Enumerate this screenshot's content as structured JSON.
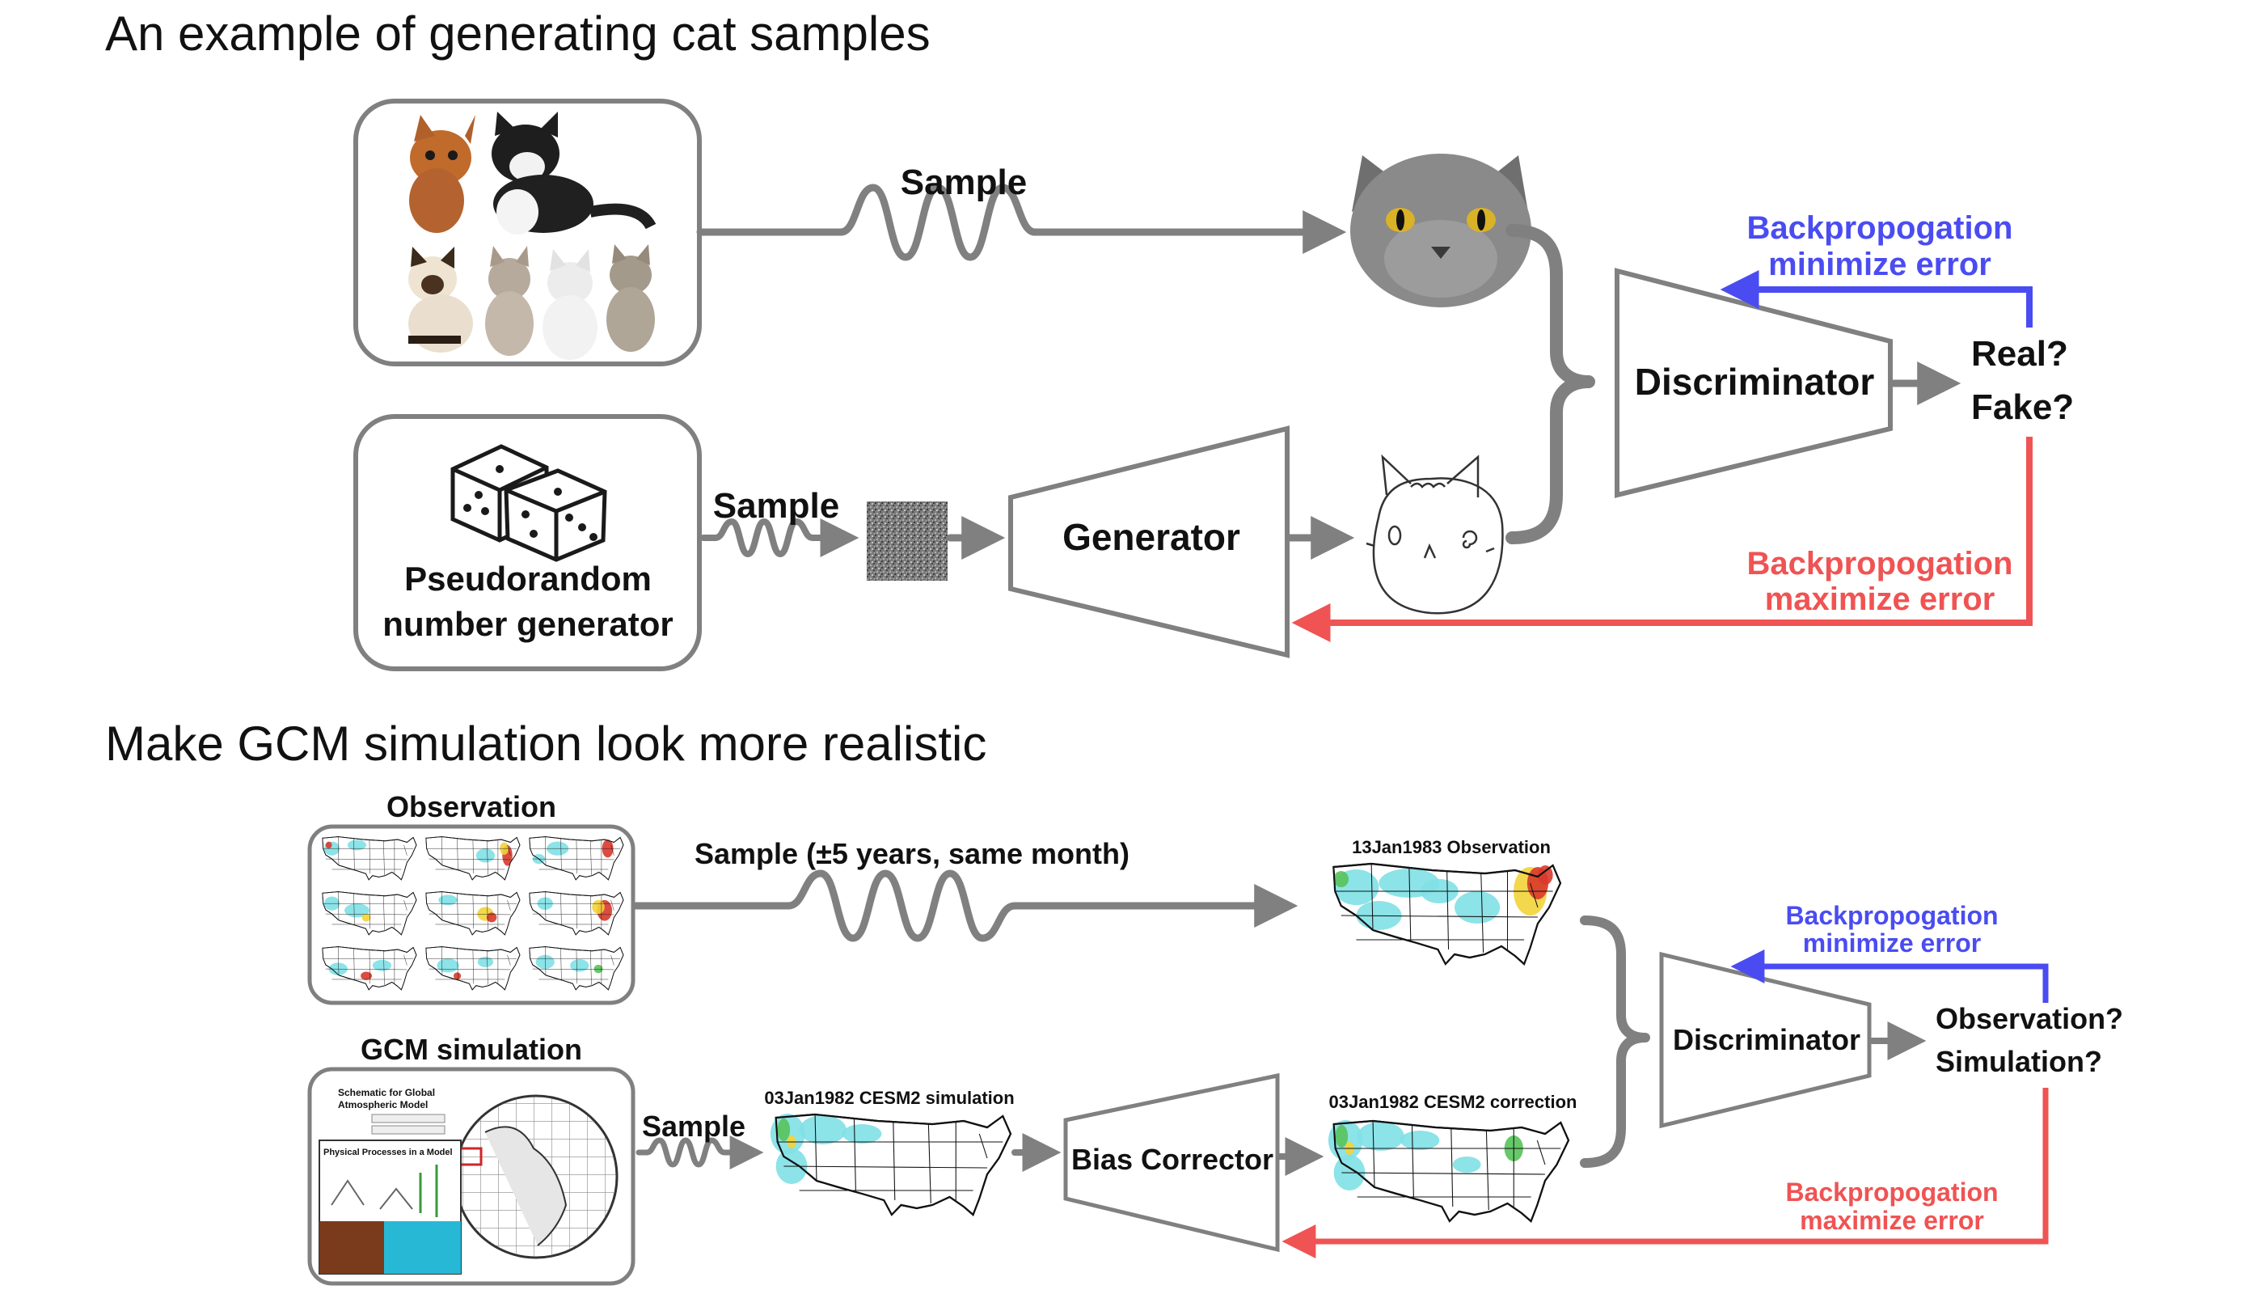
{
  "top": {
    "title": "An example of generating cat samples",
    "sample_label": "Sample",
    "sample_label_2": "Sample",
    "prng_label_line1": "Pseudorandom",
    "prng_label_line2": "number generator",
    "generator_label": "Generator",
    "discriminator_label": "Discriminator",
    "decision_line1": "Real?",
    "decision_line2": "Fake?",
    "backprop_min_line1": "Backpropogation",
    "backprop_min_line2": "minimize error",
    "backprop_max_line1": "Backpropogation",
    "backprop_max_line2": "maximize error"
  },
  "bottom": {
    "title": "Make GCM simulation look more realistic",
    "observation_label": "Observation",
    "gcm_label": "GCM simulation",
    "gcm_inset_title_line1": "Schematic for Global",
    "gcm_inset_title_line2": "Atmospheric Model",
    "gcm_inset_subtitle": "Physical Processes in a Model",
    "sample_long_label": "Sample (±5 years, same month)",
    "sample_label": "Sample",
    "obs_map_caption": "13Jan1983 Observation",
    "sim_map_caption": "03Jan1982 CESM2 simulation",
    "corr_map_caption": "03Jan1982 CESM2 correction",
    "bias_corrector_label": "Bias Corrector",
    "discriminator_label": "Discriminator",
    "decision_line1": "Observation?",
    "decision_line2": "Simulation?",
    "backprop_min_line1": "Backpropogation",
    "backprop_min_line2": "minimize error",
    "backprop_max_line1": "Backpropogation",
    "backprop_max_line2": "maximize error"
  },
  "colors": {
    "arrow_gray": "#808080",
    "minimize_blue": "#4a4cf2",
    "maximize_red": "#f05353",
    "map_cyan": "#7fe0e6",
    "map_green": "#56c25a",
    "map_yellow": "#f2d33a",
    "map_red": "#d8382b",
    "ocean_blue": "#27b8d6",
    "soil_brown": "#7a3a1c"
  },
  "icons": {
    "real_cats": "cat-photos-collage",
    "real_cat_face": "gray-cat-face",
    "generated_cat": "cat-line-drawing",
    "dice": "dice-icon",
    "noise": "noise-patch",
    "globe": "globe-grid"
  }
}
